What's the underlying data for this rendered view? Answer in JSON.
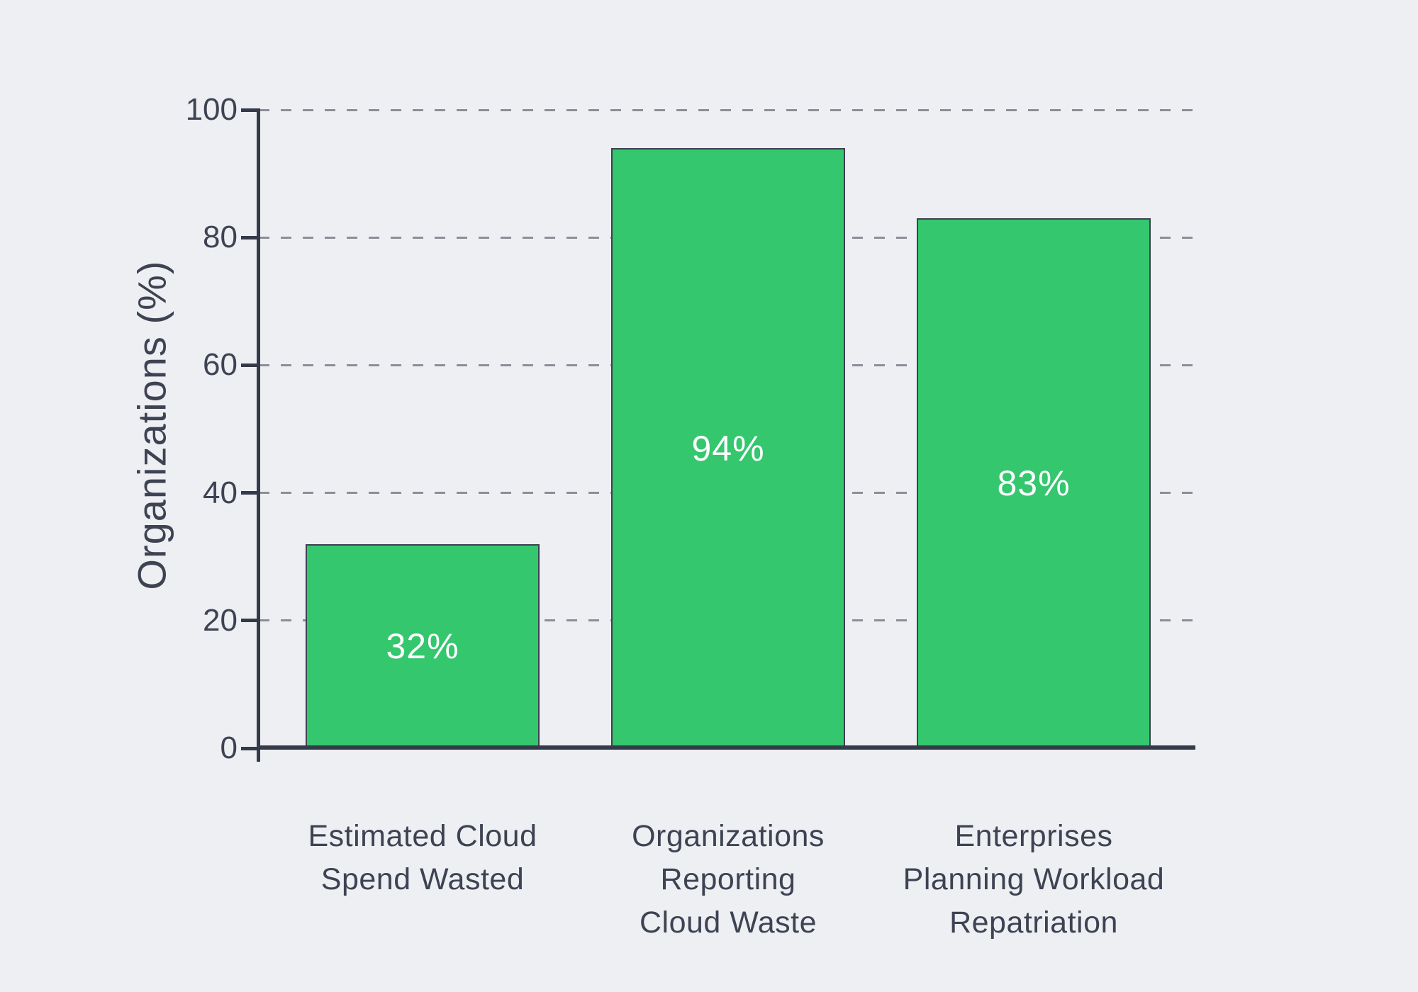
{
  "chart_data": {
    "type": "bar",
    "title": "",
    "xlabel": "",
    "ylabel": "Organizations (%)",
    "ylim": [
      0,
      100
    ],
    "yticks": [
      0,
      20,
      40,
      60,
      80,
      100
    ],
    "grid": "horizontal-dashed",
    "legend": "none",
    "categories": [
      "Estimated Cloud\nSpend Wasted",
      "Organizations\nReporting\nCloud Waste",
      "Enterprises\nPlanning Workload\nRepatriation"
    ],
    "values": [
      32,
      94,
      83
    ],
    "value_labels": [
      "32%",
      "94%",
      "83%"
    ],
    "colors": {
      "background": "#edeff3",
      "bar_fill": "#34c76e",
      "bar_edge": "#3c4150",
      "axis": "#353a48",
      "text": "#3e4353",
      "gridline": "#8b8e97",
      "value_label": "#ffffff"
    }
  }
}
